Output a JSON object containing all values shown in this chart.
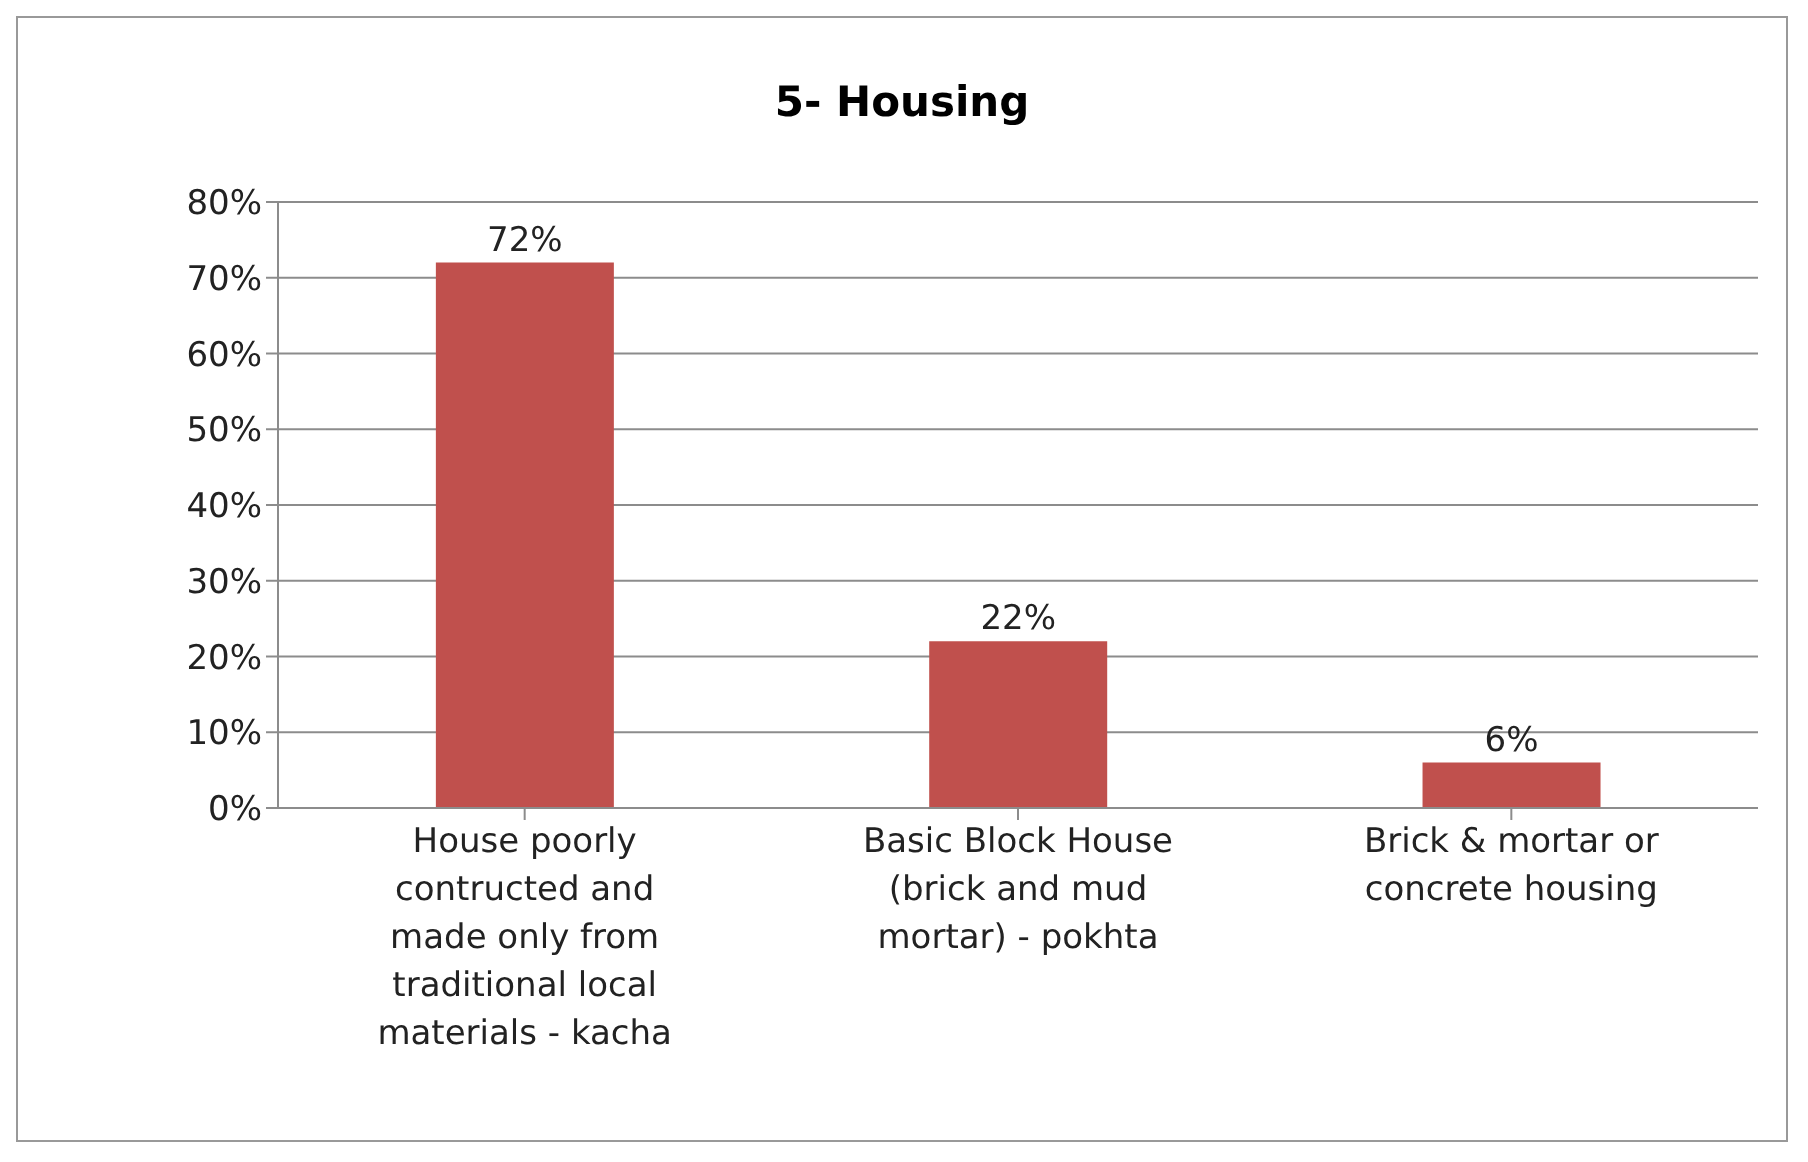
{
  "chart_data": {
    "type": "bar",
    "title": "5- Housing",
    "categories": [
      "House poorly contructed and made only from traditional local materials - kacha",
      "Basic Block House (brick and mud mortar) - pokhta",
      "Brick & mortar or concrete housing"
    ],
    "values": [
      72,
      22,
      6
    ],
    "color": "#c0504d",
    "value_labels": [
      "72%",
      "22%",
      "6%"
    ],
    "ylim": [
      0,
      80
    ],
    "yticks": [
      {
        "value": 0,
        "label": "0%"
      },
      {
        "value": 10,
        "label": "10%"
      },
      {
        "value": 20,
        "label": "20%"
      },
      {
        "value": 30,
        "label": "30%"
      },
      {
        "value": 40,
        "label": "40%"
      },
      {
        "value": 50,
        "label": "50%"
      },
      {
        "value": 60,
        "label": "60%"
      },
      {
        "value": 70,
        "label": "70%"
      },
      {
        "value": 80,
        "label": "80%"
      }
    ],
    "grid": "y",
    "legend": false
  }
}
